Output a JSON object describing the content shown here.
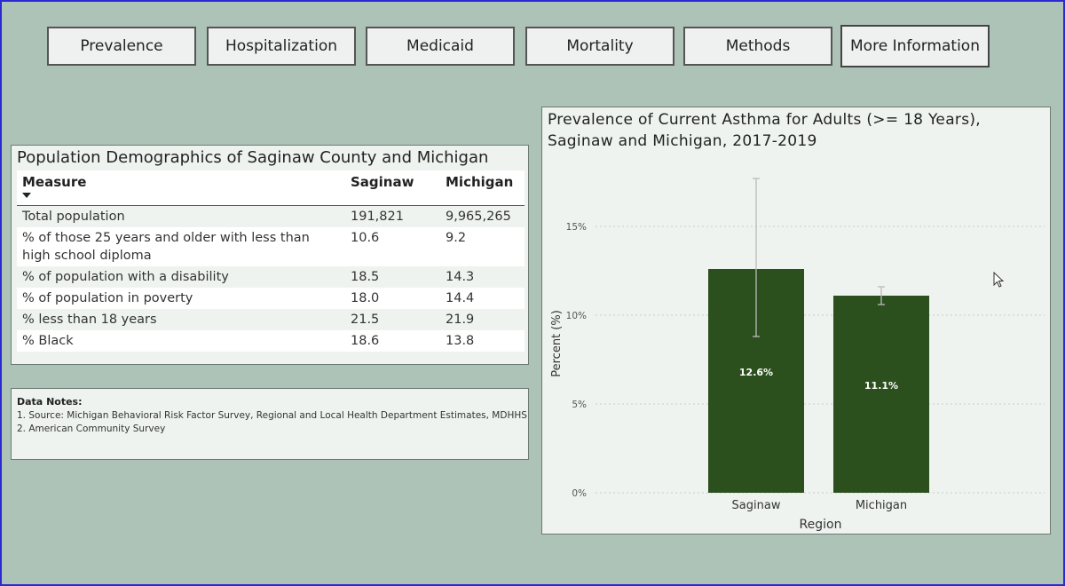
{
  "nav": {
    "buttons": [
      {
        "label": "Prevalence"
      },
      {
        "label": "Hospitalization"
      },
      {
        "label": "Medicaid"
      },
      {
        "label": "Mortality"
      },
      {
        "label": "Methods"
      },
      {
        "label": "More Information"
      }
    ]
  },
  "demographics": {
    "title": "Population Demographics of Saginaw County and Michigan",
    "headers": {
      "measure": "Measure",
      "saginaw": "Saginaw",
      "michigan": "Michigan"
    },
    "rows": [
      {
        "measure": "Total population",
        "saginaw": "191,821",
        "michigan": "9,965,265"
      },
      {
        "measure": "% of those 25 years and older with less than high school diploma",
        "saginaw": "10.6",
        "michigan": "9.2"
      },
      {
        "measure": "% of population with a disability",
        "saginaw": "18.5",
        "michigan": "14.3"
      },
      {
        "measure": "% of population in poverty",
        "saginaw": "18.0",
        "michigan": "14.4"
      },
      {
        "measure": "% less than 18 years",
        "saginaw": "21.5",
        "michigan": "21.9"
      },
      {
        "measure": "% Black",
        "saginaw": "18.6",
        "michigan": "13.8"
      }
    ]
  },
  "notes": {
    "title": "Data Notes:",
    "lines": [
      "1. Source: Michigan Behavioral Risk Factor Survey, Regional and Local Health Department Estimates, MDHHS",
      "2.  American Community Survey"
    ]
  },
  "chart_data": {
    "type": "bar",
    "title": "Prevalence of Current Asthma for Adults (>= 18 Years), Saginaw and Michigan, 2017-2019",
    "xlabel": "Region",
    "ylabel": "Percent (%)",
    "categories": [
      "Saginaw",
      "Michigan"
    ],
    "values": [
      12.6,
      11.1
    ],
    "data_labels": [
      "12.6%",
      "11.1%"
    ],
    "error_bars": [
      {
        "low": 8.8,
        "high": 17.7
      },
      {
        "low": 10.6,
        "high": 11.6
      }
    ],
    "ylim": [
      0,
      20
    ],
    "yticks": [
      0,
      5,
      10,
      15
    ],
    "ytick_labels": [
      "0%",
      "5%",
      "10%",
      "15%"
    ],
    "grid": true,
    "bar_color": "#2c4f1e"
  }
}
